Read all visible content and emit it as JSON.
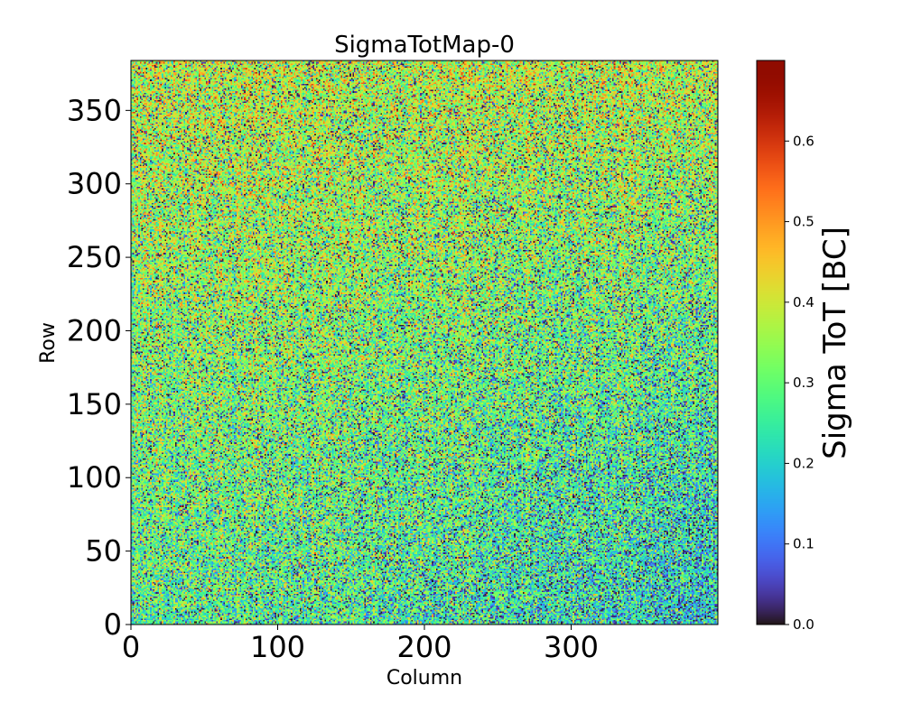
{
  "chart_data": {
    "type": "heatmap",
    "title": "SigmaTotMap-0",
    "xlabel": "Column",
    "ylabel": "Row",
    "xlim": [
      0,
      400
    ],
    "ylim": [
      0,
      384
    ],
    "x_ticks": [
      0,
      100,
      200,
      300
    ],
    "x_tick_labels": [
      "0",
      "100",
      "200",
      "300"
    ],
    "y_ticks": [
      0,
      50,
      100,
      150,
      200,
      250,
      300,
      350
    ],
    "y_tick_labels": [
      "0",
      "50",
      "100",
      "150",
      "200",
      "250",
      "300",
      "350"
    ],
    "colorbar": {
      "label": "Sigma ToT [BC]",
      "range": [
        0.0,
        0.7
      ],
      "ticks": [
        0.0,
        0.1,
        0.2,
        0.3,
        0.4,
        0.5,
        0.6
      ],
      "tick_labels": [
        "0.0",
        "0.1",
        "0.2",
        "0.3",
        "0.4",
        "0.5",
        "0.6"
      ],
      "colormap": "turbo"
    },
    "value_description": {
      "typical_mean": 0.33,
      "typical_spread": 0.14,
      "upper_rows_mean": 0.38,
      "lower_right_mean": 0.27
    }
  }
}
